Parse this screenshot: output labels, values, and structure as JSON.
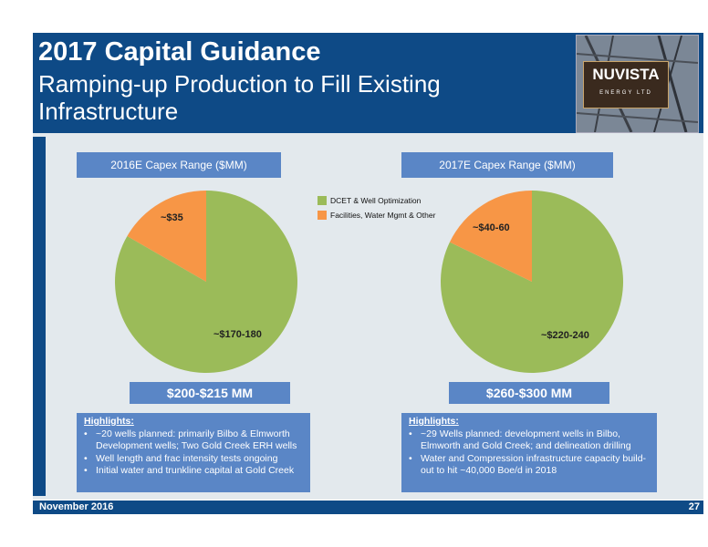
{
  "header": {
    "title": "2017 Capital Guidance",
    "subtitle": "Ramping-up Production to Fill Existing Infrastructure",
    "logo": {
      "brand": "NUVISTA",
      "sub": "ENERGY LTD"
    }
  },
  "legend": {
    "items": [
      {
        "label": "DCET & Well Optimization",
        "color": "#9bbb59"
      },
      {
        "label": "Facilities, Water Mgmt & Other",
        "color": "#f79646"
      }
    ]
  },
  "left": {
    "capex_label": "2016E Capex Range ($MM)",
    "total": "$200-$215 MM",
    "highlights_title": "Highlights:",
    "highlights": [
      "~20 wells planned: primarily Bilbo & Elmworth Development wells; Two Gold Creek ERH wells",
      "Well length and frac intensity tests ongoing",
      "Initial water and trunkline capital at Gold Creek"
    ]
  },
  "right": {
    "capex_label": "2017E Capex Range ($MM)",
    "total": "$260-$300 MM",
    "highlights_title": "Highlights:",
    "highlights": [
      "~29 Wells planned: development wells in Bilbo, Elmworth and Gold Creek; and delineation drilling",
      "Water and Compression infrastructure capacity build-out to hit ~40,000 Boe/d in 2018"
    ]
  },
  "footer": {
    "date": "November 2016",
    "page": "27"
  },
  "chart_data": [
    {
      "type": "pie",
      "title": "2016E Capex Range ($MM)",
      "labels": [
        "DCET & Well Optimization",
        "Facilities, Water Mgmt & Other"
      ],
      "values": [
        175,
        35
      ],
      "data_labels": [
        "~$170-180",
        "~$35"
      ],
      "colors": [
        "#9bbb59",
        "#f79646"
      ]
    },
    {
      "type": "pie",
      "title": "2017E Capex Range ($MM)",
      "labels": [
        "DCET & Well Optimization",
        "Facilities, Water Mgmt & Other"
      ],
      "values": [
        230,
        50
      ],
      "data_labels": [
        "~$220-240",
        "~$40-60"
      ],
      "colors": [
        "#9bbb59",
        "#f79646"
      ]
    }
  ]
}
